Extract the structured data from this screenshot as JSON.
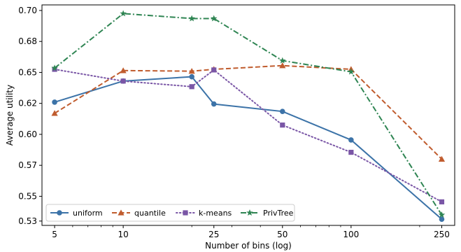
{
  "chart_data": {
    "type": "line",
    "title": "",
    "xlabel": "Number of bins (log)",
    "ylabel": "Average utility",
    "x_scale": "log",
    "x": [
      5,
      10,
      20,
      25,
      50,
      100,
      250
    ],
    "x_tick_labels": [
      {
        "value": 5,
        "label": "5"
      },
      {
        "value": 10,
        "label": "10"
      },
      {
        "value": 25,
        "label": "25"
      },
      {
        "value": 50,
        "label": "50"
      },
      {
        "value": 100,
        "label": "100"
      },
      {
        "value": 250,
        "label": "250"
      }
    ],
    "xlim": [
      4.4,
      285
    ],
    "ylim": [
      0.5265,
      0.7045
    ],
    "y_ticks": [
      {
        "value": 0.53,
        "label": "0.53"
      },
      {
        "value": 0.55,
        "label": "0.55"
      },
      {
        "value": 0.575,
        "label": "0.57"
      },
      {
        "value": 0.6,
        "label": "0.60"
      },
      {
        "value": 0.625,
        "label": "0.62"
      },
      {
        "value": 0.65,
        "label": "0.65"
      },
      {
        "value": 0.675,
        "label": "0.68"
      },
      {
        "value": 0.7,
        "label": "0.70"
      }
    ],
    "grid": false,
    "legend_position": "bottom-left",
    "series": [
      {
        "name": "uniform",
        "color": "#3c73a8",
        "dash": "solid",
        "marker": "circle",
        "values": [
          0.626,
          0.643,
          0.6465,
          0.6245,
          0.6185,
          0.5955,
          0.5315
        ]
      },
      {
        "name": "quantile",
        "color": "#c05c2e",
        "dash": "dashed",
        "marker": "triangle",
        "values": [
          0.617,
          0.6515,
          0.651,
          0.6525,
          0.6555,
          0.6525,
          0.58
        ]
      },
      {
        "name": "k-means",
        "color": "#7a56a6",
        "dash": "dotted",
        "marker": "square",
        "values": [
          0.6525,
          0.643,
          0.6385,
          0.652,
          0.6075,
          0.5855,
          0.5455
        ]
      },
      {
        "name": "PrivTree",
        "color": "#2f8553",
        "dash": "dashdot",
        "marker": "star",
        "values": [
          0.6535,
          0.6975,
          0.6935,
          0.6935,
          0.6595,
          0.6505,
          0.535
        ]
      }
    ]
  }
}
